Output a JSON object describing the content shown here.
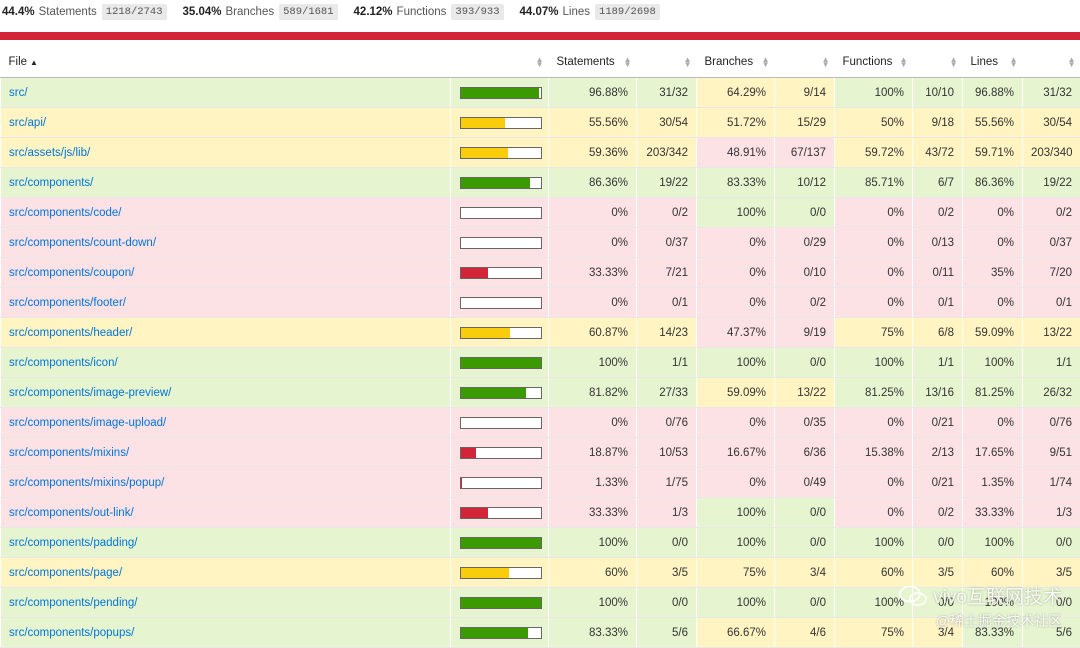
{
  "summary": [
    {
      "pct": "44.4%",
      "name": "Statements",
      "frac": "1218/2743"
    },
    {
      "pct": "35.04%",
      "name": "Branches",
      "frac": "589/1681"
    },
    {
      "pct": "42.12%",
      "name": "Functions",
      "frac": "393/933"
    },
    {
      "pct": "44.07%",
      "name": "Lines",
      "frac": "1189/2698"
    }
  ],
  "headers": {
    "file": "File",
    "statements": "Statements",
    "branches": "Branches",
    "functions": "Functions",
    "lines": "Lines"
  },
  "colors": {
    "high": "#e6f5d0",
    "medium": "#fff4c2",
    "low": "#fce1e5",
    "header_bar": "#d22638",
    "link": "#0074d9"
  },
  "rows": [
    {
      "file": "src/",
      "bar_level": "high",
      "bar_pct": 96.88,
      "stmt": "96.88%",
      "stmt_frac": "31/32",
      "stmt_level": "high",
      "branch": "64.29%",
      "branch_frac": "9/14",
      "branch_level": "medium",
      "func": "100%",
      "func_frac": "10/10",
      "func_level": "high",
      "line": "96.88%",
      "line_frac": "31/32",
      "line_level": "high"
    },
    {
      "file": "src/api/",
      "bar_level": "medium",
      "bar_pct": 55.56,
      "stmt": "55.56%",
      "stmt_frac": "30/54",
      "stmt_level": "medium",
      "branch": "51.72%",
      "branch_frac": "15/29",
      "branch_level": "medium",
      "func": "50%",
      "func_frac": "9/18",
      "func_level": "medium",
      "line": "55.56%",
      "line_frac": "30/54",
      "line_level": "medium"
    },
    {
      "file": "src/assets/js/lib/",
      "bar_level": "medium",
      "bar_pct": 59.36,
      "stmt": "59.36%",
      "stmt_frac": "203/342",
      "stmt_level": "medium",
      "branch": "48.91%",
      "branch_frac": "67/137",
      "branch_level": "low",
      "func": "59.72%",
      "func_frac": "43/72",
      "func_level": "medium",
      "line": "59.71%",
      "line_frac": "203/340",
      "line_level": "medium"
    },
    {
      "file": "src/components/",
      "bar_level": "high",
      "bar_pct": 86.36,
      "stmt": "86.36%",
      "stmt_frac": "19/22",
      "stmt_level": "high",
      "branch": "83.33%",
      "branch_frac": "10/12",
      "branch_level": "high",
      "func": "85.71%",
      "func_frac": "6/7",
      "func_level": "high",
      "line": "86.36%",
      "line_frac": "19/22",
      "line_level": "high"
    },
    {
      "file": "src/components/code/",
      "bar_level": "low",
      "bar_pct": 0,
      "stmt": "0%",
      "stmt_frac": "0/2",
      "stmt_level": "low",
      "branch": "100%",
      "branch_frac": "0/0",
      "branch_level": "high",
      "func": "0%",
      "func_frac": "0/2",
      "func_level": "low",
      "line": "0%",
      "line_frac": "0/2",
      "line_level": "low"
    },
    {
      "file": "src/components/count-down/",
      "bar_level": "low",
      "bar_pct": 0,
      "stmt": "0%",
      "stmt_frac": "0/37",
      "stmt_level": "low",
      "branch": "0%",
      "branch_frac": "0/29",
      "branch_level": "low",
      "func": "0%",
      "func_frac": "0/13",
      "func_level": "low",
      "line": "0%",
      "line_frac": "0/37",
      "line_level": "low"
    },
    {
      "file": "src/components/coupon/",
      "bar_level": "low",
      "bar_pct": 33.33,
      "stmt": "33.33%",
      "stmt_frac": "7/21",
      "stmt_level": "low",
      "branch": "0%",
      "branch_frac": "0/10",
      "branch_level": "low",
      "func": "0%",
      "func_frac": "0/11",
      "func_level": "low",
      "line": "35%",
      "line_frac": "7/20",
      "line_level": "low"
    },
    {
      "file": "src/components/footer/",
      "bar_level": "low",
      "bar_pct": 0,
      "stmt": "0%",
      "stmt_frac": "0/1",
      "stmt_level": "low",
      "branch": "0%",
      "branch_frac": "0/2",
      "branch_level": "low",
      "func": "0%",
      "func_frac": "0/1",
      "func_level": "low",
      "line": "0%",
      "line_frac": "0/1",
      "line_level": "low"
    },
    {
      "file": "src/components/header/",
      "bar_level": "medium",
      "bar_pct": 60.87,
      "stmt": "60.87%",
      "stmt_frac": "14/23",
      "stmt_level": "medium",
      "branch": "47.37%",
      "branch_frac": "9/19",
      "branch_level": "low",
      "func": "75%",
      "func_frac": "6/8",
      "func_level": "medium",
      "line": "59.09%",
      "line_frac": "13/22",
      "line_level": "medium"
    },
    {
      "file": "src/components/icon/",
      "bar_level": "high",
      "bar_pct": 100,
      "stmt": "100%",
      "stmt_frac": "1/1",
      "stmt_level": "high",
      "branch": "100%",
      "branch_frac": "0/0",
      "branch_level": "high",
      "func": "100%",
      "func_frac": "1/1",
      "func_level": "high",
      "line": "100%",
      "line_frac": "1/1",
      "line_level": "high"
    },
    {
      "file": "src/components/image-preview/",
      "bar_level": "high",
      "bar_pct": 81.82,
      "stmt": "81.82%",
      "stmt_frac": "27/33",
      "stmt_level": "high",
      "branch": "59.09%",
      "branch_frac": "13/22",
      "branch_level": "medium",
      "func": "81.25%",
      "func_frac": "13/16",
      "func_level": "high",
      "line": "81.25%",
      "line_frac": "26/32",
      "line_level": "high"
    },
    {
      "file": "src/components/image-upload/",
      "bar_level": "low",
      "bar_pct": 0,
      "stmt": "0%",
      "stmt_frac": "0/76",
      "stmt_level": "low",
      "branch": "0%",
      "branch_frac": "0/35",
      "branch_level": "low",
      "func": "0%",
      "func_frac": "0/21",
      "func_level": "low",
      "line": "0%",
      "line_frac": "0/76",
      "line_level": "low"
    },
    {
      "file": "src/components/mixins/",
      "bar_level": "low",
      "bar_pct": 18.87,
      "stmt": "18.87%",
      "stmt_frac": "10/53",
      "stmt_level": "low",
      "branch": "16.67%",
      "branch_frac": "6/36",
      "branch_level": "low",
      "func": "15.38%",
      "func_frac": "2/13",
      "func_level": "low",
      "line": "17.65%",
      "line_frac": "9/51",
      "line_level": "low"
    },
    {
      "file": "src/components/mixins/popup/",
      "bar_level": "low",
      "bar_pct": 1.33,
      "stmt": "1.33%",
      "stmt_frac": "1/75",
      "stmt_level": "low",
      "branch": "0%",
      "branch_frac": "0/49",
      "branch_level": "low",
      "func": "0%",
      "func_frac": "0/21",
      "func_level": "low",
      "line": "1.35%",
      "line_frac": "1/74",
      "line_level": "low"
    },
    {
      "file": "src/components/out-link/",
      "bar_level": "low",
      "bar_pct": 33.33,
      "stmt": "33.33%",
      "stmt_frac": "1/3",
      "stmt_level": "low",
      "branch": "100%",
      "branch_frac": "0/0",
      "branch_level": "high",
      "func": "0%",
      "func_frac": "0/2",
      "func_level": "low",
      "line": "33.33%",
      "line_frac": "1/3",
      "line_level": "low"
    },
    {
      "file": "src/components/padding/",
      "bar_level": "high",
      "bar_pct": 100,
      "stmt": "100%",
      "stmt_frac": "0/0",
      "stmt_level": "high",
      "branch": "100%",
      "branch_frac": "0/0",
      "branch_level": "high",
      "func": "100%",
      "func_frac": "0/0",
      "func_level": "high",
      "line": "100%",
      "line_frac": "0/0",
      "line_level": "high"
    },
    {
      "file": "src/components/page/",
      "bar_level": "medium",
      "bar_pct": 60,
      "stmt": "60%",
      "stmt_frac": "3/5",
      "stmt_level": "medium",
      "branch": "75%",
      "branch_frac": "3/4",
      "branch_level": "medium",
      "func": "60%",
      "func_frac": "3/5",
      "func_level": "medium",
      "line": "60%",
      "line_frac": "3/5",
      "line_level": "medium"
    },
    {
      "file": "src/components/pending/",
      "bar_level": "high",
      "bar_pct": 100,
      "stmt": "100%",
      "stmt_frac": "0/0",
      "stmt_level": "high",
      "branch": "100%",
      "branch_frac": "0/0",
      "branch_level": "high",
      "func": "100%",
      "func_frac": "0/0",
      "func_level": "high",
      "line": "100%",
      "line_frac": "0/0",
      "line_level": "high"
    },
    {
      "file": "src/components/popups/",
      "bar_level": "high",
      "bar_pct": 83.33,
      "stmt": "83.33%",
      "stmt_frac": "5/6",
      "stmt_level": "high",
      "branch": "66.67%",
      "branch_frac": "4/6",
      "branch_level": "medium",
      "func": "75%",
      "func_frac": "3/4",
      "func_level": "medium",
      "line": "83.33%",
      "line_frac": "5/6",
      "line_level": "high"
    }
  ],
  "watermark": {
    "line1": "vivo互联网技术",
    "line2": "@稀土掘金技术社区"
  }
}
